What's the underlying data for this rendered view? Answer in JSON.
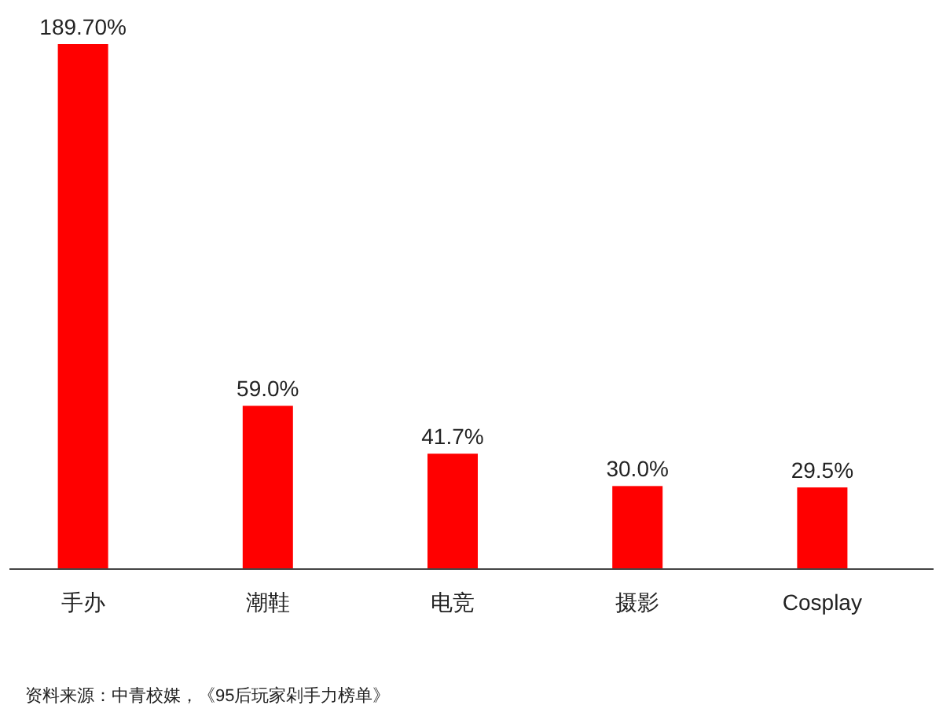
{
  "chart_data": {
    "type": "bar",
    "categories": [
      "手办",
      "潮鞋",
      "电竞",
      "摄影",
      "Cosplay"
    ],
    "values": [
      189.7,
      59.0,
      41.7,
      30.0,
      29.5
    ],
    "value_labels": [
      "189.70%",
      "59.0%",
      "41.7%",
      "30.0%",
      "29.5%"
    ],
    "color": "#ff0000",
    "annotations": [
      "资料来源：中青校媒，《95后玩家剁手力榜单》"
    ]
  }
}
